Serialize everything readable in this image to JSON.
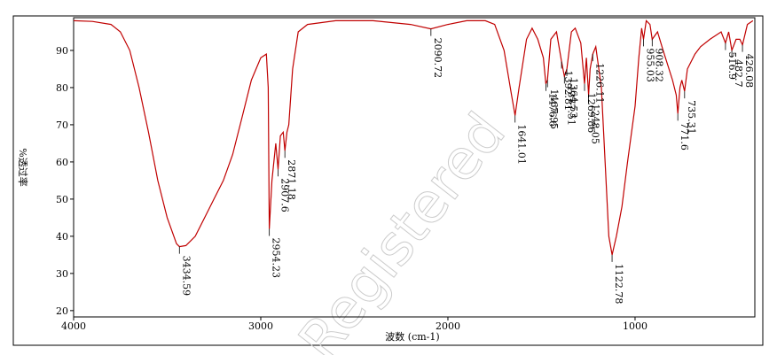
{
  "chart_data": {
    "type": "line",
    "xlabel": "波数 (cm-1)",
    "ylabel": "%透过率",
    "watermark": "Registered",
    "color": "#c00000",
    "xlim": [
      4000,
      360
    ],
    "ylim": [
      18.3,
      98.8
    ],
    "xticks": [
      4000,
      3000,
      2000,
      1000
    ],
    "yticks": [
      20,
      30,
      40,
      50,
      60,
      70,
      80,
      90
    ],
    "x": [
      4000,
      3900,
      3800,
      3750,
      3700,
      3650,
      3600,
      3550,
      3500,
      3450,
      3434.59,
      3400,
      3350,
      3300,
      3250,
      3200,
      3150,
      3100,
      3050,
      3000,
      2970,
      2960,
      2954.23,
      2940,
      2920,
      2907.6,
      2895,
      2880,
      2871.18,
      2860,
      2850,
      2830,
      2800,
      2750,
      2600,
      2400,
      2200,
      2090.72,
      2000,
      1900,
      1800,
      1750,
      1700,
      1660,
      1641.01,
      1620,
      1580,
      1550,
      1520,
      1490,
      1476.6,
      1467.95,
      1450,
      1420,
      1392.81,
      1377.51,
      1364.53,
      1340,
      1320,
      1290,
      1269.86,
      1260,
      1248.05,
      1240,
      1226.11,
      1210,
      1180,
      1160,
      1140,
      1122.78,
      1100,
      1070,
      1040,
      1000,
      980,
      965,
      955.03,
      940,
      920,
      908.32,
      880,
      850,
      800,
      780,
      771.6,
      760,
      750,
      735.31,
      720,
      680,
      650,
      600,
      540,
      516.9,
      500,
      482.7,
      460,
      440,
      426.08,
      400,
      370
    ],
    "values": [
      98,
      97.8,
      97,
      95,
      90,
      80,
      68,
      55,
      45,
      38,
      37.2,
      37.5,
      40,
      45,
      50,
      55,
      62,
      72,
      82,
      88,
      89,
      80,
      42,
      55,
      65,
      58,
      67,
      68,
      63,
      68,
      70,
      85,
      95,
      97,
      98,
      98,
      97,
      95.8,
      97,
      98,
      98,
      97,
      90,
      78,
      72.5,
      80,
      93,
      96,
      93,
      88,
      81,
      82,
      93,
      95,
      87,
      83,
      85,
      95,
      96,
      92,
      81,
      88,
      78,
      85,
      89,
      91,
      80,
      60,
      40,
      35,
      40,
      48,
      60,
      75,
      88,
      96,
      93,
      98,
      97,
      93,
      95,
      90,
      82,
      78,
      73,
      80,
      82,
      79,
      85,
      89,
      91,
      93,
      95,
      92,
      95,
      90,
      93,
      93,
      91.5,
      97,
      98
    ],
    "peaks": [
      {
        "x": 3434.59,
        "y": 37.2
      },
      {
        "x": 2954.23,
        "y": 42
      },
      {
        "x": 2907.6,
        "y": 58
      },
      {
        "x": 2871.18,
        "y": 63
      },
      {
        "x": 2090.72,
        "y": 95.8
      },
      {
        "x": 1641.01,
        "y": 72.5
      },
      {
        "x": 1476.6,
        "y": 81
      },
      {
        "x": 1467.95,
        "y": 82
      },
      {
        "x": 1392.81,
        "y": 87
      },
      {
        "x": 1377.51,
        "y": 83
      },
      {
        "x": 1364.53,
        "y": 85
      },
      {
        "x": 1269.86,
        "y": 81
      },
      {
        "x": 1248.05,
        "y": 78
      },
      {
        "x": 1226.11,
        "y": 89
      },
      {
        "x": 1122.78,
        "y": 35
      },
      {
        "x": 955.03,
        "y": 93
      },
      {
        "x": 908.32,
        "y": 93
      },
      {
        "x": 771.6,
        "y": 73
      },
      {
        "x": 735.31,
        "y": 79
      },
      {
        "x": 516.9,
        "y": 92
      },
      {
        "x": 482.7,
        "y": 90
      },
      {
        "x": 426.08,
        "y": 91.5
      }
    ]
  }
}
